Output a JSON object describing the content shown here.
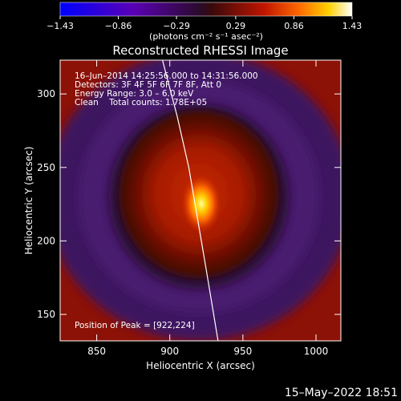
{
  "chart_data": {
    "type": "heatmap",
    "title": "Reconstructed RHESSI Image",
    "xlabel": "Heliocentric X (arcsec)",
    "ylabel": "Heliocentric Y (arcsec)",
    "xlim": [
      825,
      1017
    ],
    "ylim": [
      132,
      323
    ],
    "x_ticks": [
      {
        "value": 850,
        "label": "850"
      },
      {
        "value": 900,
        "label": "900"
      },
      {
        "value": 950,
        "label": "950"
      },
      {
        "value": 1000,
        "label": "1000"
      }
    ],
    "y_ticks": [
      {
        "value": 150,
        "label": "150"
      },
      {
        "value": 200,
        "label": "200"
      },
      {
        "value": 250,
        "label": "250"
      },
      {
        "value": 300,
        "label": "300"
      }
    ],
    "colorbar": {
      "range": [
        -1.43,
        1.43
      ],
      "tick_values": [
        -1.43,
        -0.86,
        -0.29,
        0.29,
        0.86,
        1.43
      ],
      "tick_labels": [
        "−1.43",
        "−0.86",
        "−0.29",
        "0.29",
        "0.86",
        "1.43"
      ],
      "units_label": "(photons cm⁻² s⁻¹ asec⁻²)"
    },
    "annotations": [
      "16–Jun–2014 14:25:56.000 to 14:31:56.000",
      "Detectors: 3F 4F 5F 6F 7F 8F, Att 0",
      "Energy Range: 3.0 – 6.0 keV",
      "Clean    Total counts: 1.78E+05"
    ],
    "peak": {
      "x": 922,
      "y": 224,
      "label": "Position of Peak = [922,224]"
    },
    "limb_curve": [
      [
        895,
        323
      ],
      [
        905,
        285
      ],
      [
        913,
        250
      ],
      [
        919,
        215
      ],
      [
        925,
        180
      ],
      [
        930,
        150
      ],
      [
        933,
        132
      ]
    ],
    "timestamp": "15–May–2022 18:51"
  }
}
